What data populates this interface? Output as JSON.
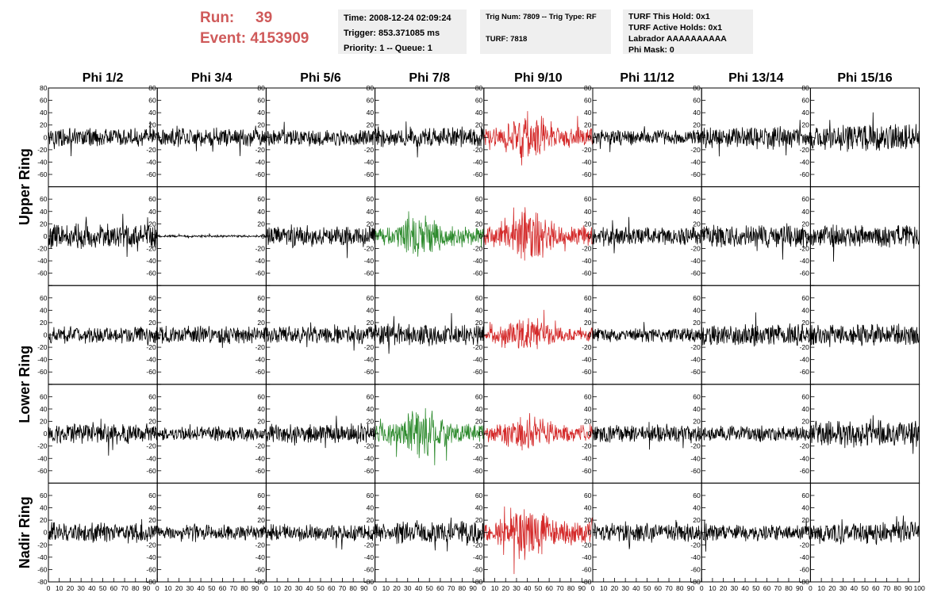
{
  "header": {
    "run_label": "Run:",
    "run_value": "39",
    "event_label": "Event:",
    "event_value": "4153909",
    "time": "Time: 2008-12-24 02:09:24",
    "trigger": "Trigger: 853.371085 ms",
    "priority": "Priority: 1 -- Queue: 1",
    "trig_num": "Trig Num: 7809 -- Trig Type: RF",
    "turf": "TURF: 7818",
    "turf_this_hold": "TURF This Hold: 0x1",
    "turf_active_holds": "TURF Active Holds: 0x1",
    "labrador": "Labrador AAAAAAAAAA",
    "phi_mask": "Phi Mask: 0"
  },
  "colors": {
    "header_red": "#cf5a5a",
    "trace_default": "#000000",
    "trace_red": "#d42a2a",
    "trace_green": "#2e8b2e",
    "info_bg": "#efefef"
  },
  "chart_data": {
    "type": "line",
    "columns": [
      "Phi 1/2",
      "Phi 3/4",
      "Phi 5/6",
      "Phi 7/8",
      "Phi 9/10",
      "Phi 11/12",
      "Phi 13/14",
      "Phi 15/16"
    ],
    "ring_labels": [
      {
        "text": "Upper Ring",
        "rows": [
          0,
          1
        ]
      },
      {
        "text": "Lower Ring",
        "rows": [
          2,
          3
        ]
      },
      {
        "text": "Nadir Ring",
        "rows": [
          4,
          4
        ]
      }
    ],
    "rows": 5,
    "xlim": [
      0,
      100
    ],
    "ylim": [
      -80,
      80
    ],
    "x_tick_labels": [
      "0",
      "10",
      "20",
      "30",
      "40",
      "50",
      "60",
      "70",
      "80",
      "90",
      "100"
    ],
    "y_tick_labels": [
      "-80",
      "-60",
      "-40",
      "-20",
      "0",
      "20",
      "40",
      "60",
      "80"
    ],
    "grid": false,
    "legend": "none",
    "waveform_note_samples": 260,
    "traces": [
      [
        {
          "a": 12,
          "c": "k"
        },
        {
          "a": 12,
          "c": "k"
        },
        {
          "a": 11,
          "c": "k"
        },
        {
          "a": 14,
          "c": "k"
        },
        {
          "a": 24,
          "c": "r",
          "b": 1
        },
        {
          "a": 10,
          "c": "k"
        },
        {
          "a": 15,
          "c": "k"
        },
        {
          "a": 18,
          "c": "k"
        }
      ],
      [
        {
          "a": 17,
          "c": "k"
        },
        {
          "a": 1.5,
          "c": "k"
        },
        {
          "a": 14,
          "c": "k"
        },
        {
          "a": 22,
          "c": "g",
          "b": 1
        },
        {
          "a": 24,
          "c": "r",
          "b": 1
        },
        {
          "a": 12,
          "c": "k"
        },
        {
          "a": 15,
          "c": "k"
        },
        {
          "a": 15,
          "c": "k"
        }
      ],
      [
        {
          "a": 11,
          "c": "k"
        },
        {
          "a": 12,
          "c": "k"
        },
        {
          "a": 12,
          "c": "k"
        },
        {
          "a": 14,
          "c": "k"
        },
        {
          "a": 18,
          "c": "r",
          "b": 1
        },
        {
          "a": 10,
          "c": "k"
        },
        {
          "a": 15,
          "c": "k"
        },
        {
          "a": 15,
          "c": "k"
        }
      ],
      [
        {
          "a": 13,
          "c": "k"
        },
        {
          "a": 10,
          "c": "k"
        },
        {
          "a": 13,
          "c": "k"
        },
        {
          "a": 24,
          "c": "g",
          "b": 1
        },
        {
          "a": 20,
          "c": "r",
          "b": 1
        },
        {
          "a": 12,
          "c": "k"
        },
        {
          "a": 10,
          "c": "k"
        },
        {
          "a": 18,
          "c": "k"
        }
      ],
      [
        {
          "a": 14,
          "c": "k"
        },
        {
          "a": 10,
          "c": "k"
        },
        {
          "a": 11,
          "c": "k"
        },
        {
          "a": 15,
          "c": "k"
        },
        {
          "a": 26,
          "c": "r",
          "b": 1
        },
        {
          "a": 13,
          "c": "k"
        },
        {
          "a": 11,
          "c": "k"
        },
        {
          "a": 14,
          "c": "k"
        }
      ]
    ]
  }
}
